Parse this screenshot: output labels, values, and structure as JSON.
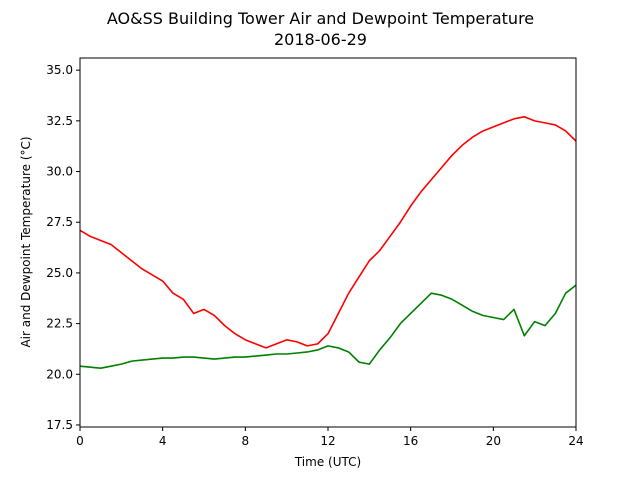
{
  "chart_data": {
    "type": "line",
    "title": "AO&SS Building Tower Air and Dewpoint Temperature",
    "subtitle": "2018-06-29",
    "xlabel": "Time (UTC)",
    "ylabel": "Air and Dewpoint Temperature (°C)",
    "xlim": [
      0,
      24
    ],
    "ylim": [
      17.4,
      35.6
    ],
    "xticks": [
      0,
      4,
      8,
      12,
      16,
      20,
      24
    ],
    "yticks": [
      17.5,
      20.0,
      22.5,
      25.0,
      27.5,
      30.0,
      32.5,
      35.0
    ],
    "ytick_labels": [
      "17.5",
      "20.0",
      "22.5",
      "25.0",
      "27.5",
      "30.0",
      "32.5",
      "35.0"
    ],
    "grid": false,
    "series": [
      {
        "color": "#ff0000",
        "x": [
          0,
          0.5,
          1,
          1.5,
          2,
          2.5,
          3,
          3.5,
          4,
          4.5,
          5,
          5.5,
          6,
          6.5,
          7,
          7.5,
          8,
          8.5,
          9,
          9.5,
          10,
          10.5,
          11,
          11.5,
          12,
          12.5,
          13,
          13.5,
          14,
          14.5,
          15,
          15.5,
          16,
          16.5,
          17,
          17.5,
          18,
          18.5,
          19,
          19.5,
          20,
          20.5,
          21,
          21.5,
          22,
          22.5,
          23,
          23.5,
          24
        ],
        "y": [
          27.1,
          26.8,
          26.6,
          26.4,
          26.0,
          25.6,
          25.2,
          24.9,
          24.6,
          24.0,
          23.7,
          23.0,
          23.2,
          22.9,
          22.4,
          22.0,
          21.7,
          21.5,
          21.3,
          21.5,
          21.7,
          21.6,
          21.4,
          21.5,
          22.0,
          23.0,
          24.0,
          24.8,
          25.6,
          26.1,
          26.8,
          27.5,
          28.3,
          29.0,
          29.6,
          30.2,
          30.8,
          31.3,
          31.7,
          32.0,
          32.2,
          32.4,
          32.6,
          32.7,
          32.5,
          32.4,
          32.3,
          32.0,
          31.5
        ]
      },
      {
        "color": "#008000",
        "x": [
          0,
          0.5,
          1,
          1.5,
          2,
          2.5,
          3,
          3.5,
          4,
          4.5,
          5,
          5.5,
          6,
          6.5,
          7,
          7.5,
          8,
          8.5,
          9,
          9.5,
          10,
          10.5,
          11,
          11.5,
          12,
          12.5,
          13,
          13.5,
          14,
          14.5,
          15,
          15.5,
          16,
          16.5,
          17,
          17.5,
          18,
          18.5,
          19,
          19.5,
          20,
          20.5,
          21,
          21.5,
          22,
          22.5,
          23,
          23.5,
          24
        ],
        "y": [
          20.4,
          20.35,
          20.3,
          20.4,
          20.5,
          20.65,
          20.7,
          20.75,
          20.8,
          20.8,
          20.85,
          20.85,
          20.8,
          20.75,
          20.8,
          20.85,
          20.85,
          20.9,
          20.95,
          21.0,
          21.0,
          21.05,
          21.1,
          21.2,
          21.4,
          21.3,
          21.1,
          20.6,
          20.5,
          21.2,
          21.8,
          22.5,
          23.0,
          23.5,
          24.0,
          23.9,
          23.7,
          23.4,
          23.1,
          22.9,
          22.8,
          22.7,
          23.2,
          21.9,
          22.6,
          22.4,
          23.0,
          24.0,
          24.4
        ]
      }
    ]
  }
}
